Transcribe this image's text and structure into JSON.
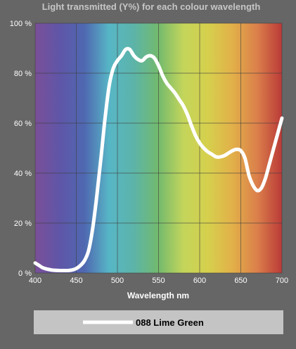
{
  "colors": {
    "page_background": "#666666",
    "title_text": "#c6c6c6",
    "axis_text": "#ffffff",
    "curve": "#ffffff",
    "legend_background": "#c4c4c4",
    "legend_text": "#000000",
    "spectrum_stops": [
      "#7a4f98",
      "#5f56a8",
      "#4f68b1",
      "#57b6c6",
      "#5cb4a8",
      "#73ba6d",
      "#c3d55b",
      "#d6d04d",
      "#e2b049",
      "#db7f4b",
      "#ba3a38"
    ]
  },
  "chart_data": {
    "type": "line",
    "title": "Light transmitted (Y%) for each colour wavelength",
    "xlabel": "Wavelength nm",
    "ylabel": "",
    "xlim": [
      400,
      700
    ],
    "ylim": [
      0,
      100
    ],
    "x_ticks": [
      400,
      450,
      500,
      550,
      600,
      650,
      700
    ],
    "x_tick_labels": [
      "400",
      "450",
      "500",
      "550",
      "600",
      "650",
      "700"
    ],
    "y_ticks": [
      0,
      20,
      40,
      60,
      80,
      100
    ],
    "y_tick_labels": [
      "0 %",
      "20 %",
      "40 %",
      "60 %",
      "80 %",
      "100 %"
    ],
    "grid": true,
    "legend_placement": "bottom",
    "series": [
      {
        "name": "088 Lime Green",
        "color": "#ffffff",
        "x": [
          400,
          405,
          410,
          420,
          430,
          440,
          445,
          450,
          455,
          460,
          465,
          470,
          475,
          480,
          485,
          490,
          495,
          500,
          505,
          510,
          515,
          520,
          525,
          530,
          535,
          540,
          545,
          550,
          555,
          560,
          565,
          570,
          575,
          580,
          585,
          590,
          595,
          600,
          605,
          610,
          615,
          620,
          625,
          630,
          635,
          640,
          645,
          650,
          655,
          660,
          665,
          670,
          675,
          680,
          685,
          690,
          695,
          700
        ],
        "y": [
          4,
          3,
          2,
          1.2,
          1,
          1,
          1.2,
          1.8,
          3,
          5,
          9,
          18,
          31,
          46,
          62,
          75,
          82,
          85,
          87,
          89.5,
          89.5,
          87,
          85.5,
          85,
          86.5,
          87,
          86,
          83,
          79,
          76,
          74,
          72,
          69.5,
          67,
          63.5,
          59,
          55,
          52,
          50,
          48.5,
          47.5,
          46.5,
          46.5,
          47,
          48,
          49,
          49.5,
          49,
          46,
          39,
          35,
          33,
          34,
          38,
          44,
          50,
          56,
          62
        ]
      }
    ]
  },
  "legend": {
    "entries": [
      {
        "label": "088 Lime Green",
        "color": "#ffffff"
      }
    ]
  }
}
